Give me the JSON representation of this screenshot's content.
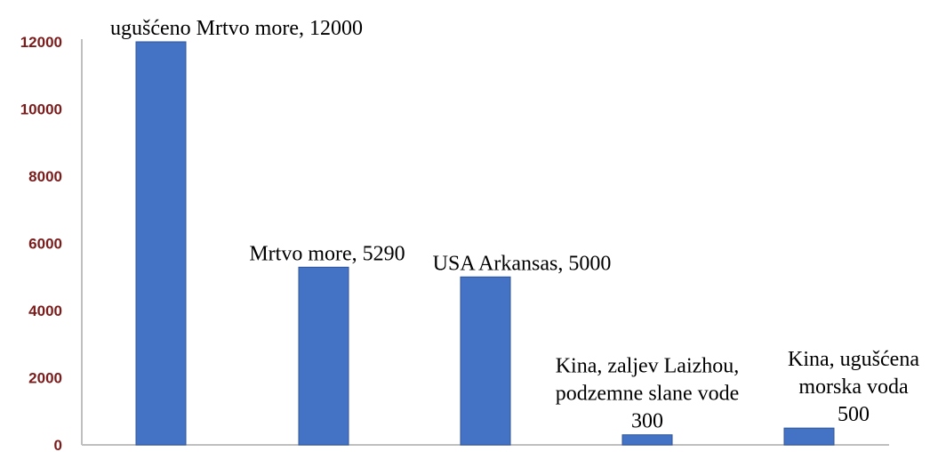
{
  "chart_data": {
    "type": "bar",
    "categories": [
      "ugušćeno Mrtvo more",
      "Mrtvo more",
      "USA Arkansas",
      "Kina, zaljev Laizhou, podzemne slane vode",
      "Kina, ugušćena morska voda"
    ],
    "values": [
      12000,
      5290,
      5000,
      300,
      500
    ],
    "data_labels": [
      [
        "ugušćeno Mrtvo more, 12000"
      ],
      [
        "Mrtvo more, 5290"
      ],
      [
        "USA Arkansas, 5000"
      ],
      [
        "Kina, zaljev Laizhou,",
        "podzemne slane vode",
        "300"
      ],
      [
        "Kina, ugušćena",
        "morska voda",
        "500"
      ]
    ],
    "yticks": [
      "0",
      "2000",
      "4000",
      "6000",
      "8000",
      "10000",
      "12000"
    ],
    "ylim": [
      0,
      12000
    ],
    "bar_color": "#4472c4",
    "bar_edge_color": "#2f5597",
    "tick_color": "#7a1c1c",
    "axis_color": "#bfbfbf",
    "grid": false,
    "legend": "none",
    "title": "",
    "xlabel": "",
    "ylabel": ""
  }
}
